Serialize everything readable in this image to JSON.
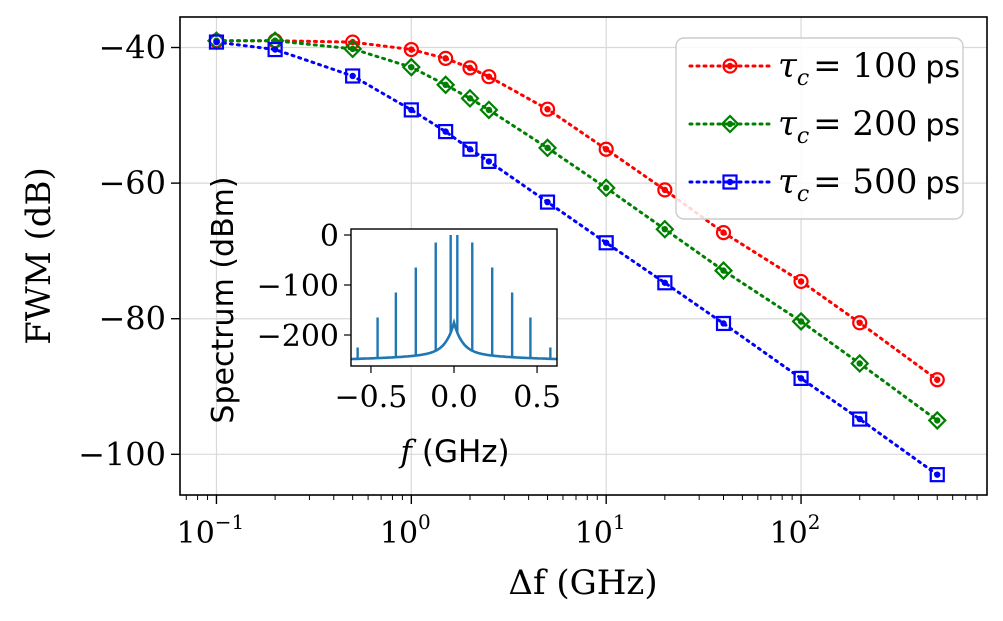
{
  "chart_data": [
    {
      "type": "line",
      "xscale": "log",
      "xlabel": "Δf (GHz)",
      "ylabel": "FWM (dB)",
      "xlim": [
        0.065,
        900
      ],
      "ylim": [
        -106,
        -35.5
      ],
      "xticks": [
        {
          "value": 0.1,
          "base": "10",
          "exp": "−1"
        },
        {
          "value": 1,
          "base": "10",
          "exp": "0"
        },
        {
          "value": 10,
          "base": "10",
          "exp": "1"
        },
        {
          "value": 100,
          "base": "10",
          "exp": "2"
        }
      ],
      "yticks": [
        {
          "value": -40,
          "label": "−40"
        },
        {
          "value": -60,
          "label": "−60"
        },
        {
          "value": -80,
          "label": "−80"
        },
        {
          "value": -100,
          "label": "−100"
        }
      ],
      "grid": true,
      "legend_position": "top-right",
      "x": [
        0.1,
        0.2,
        0.5,
        1,
        1.5,
        2,
        2.5,
        5,
        10,
        20,
        40,
        100,
        200,
        500
      ],
      "series": [
        {
          "name": "τ_c = 100 ps",
          "legend_math": "τ",
          "legend_sub": "c",
          "legend_eq": "= 100",
          "legend_unit": "ps",
          "color": "#ff0000",
          "marker": "circle",
          "values": [
            -39,
            -39,
            -39.2,
            -40.3,
            -41.6,
            -43,
            -44.3,
            -49.1,
            -55,
            -61,
            -67.3,
            -74.5,
            -80.6,
            -89
          ]
        },
        {
          "name": "τ_c = 200 ps",
          "legend_math": "τ",
          "legend_sub": "c",
          "legend_eq": "= 200",
          "legend_unit": "ps",
          "color": "#008000",
          "marker": "diamond",
          "values": [
            -39,
            -39,
            -40.2,
            -42.9,
            -45.5,
            -47.5,
            -49.2,
            -54.8,
            -60.7,
            -66.8,
            -72.9,
            -80.4,
            -86.6,
            -95
          ]
        },
        {
          "name": "τ_c = 500 ps",
          "legend_math": "τ",
          "legend_sub": "c",
          "legend_eq": "= 500",
          "legend_unit": "ps",
          "color": "#0000ff",
          "marker": "square",
          "values": [
            -39.2,
            -40.3,
            -44.2,
            -49.2,
            -52.4,
            -55,
            -56.8,
            -62.8,
            -68.8,
            -74.7,
            -80.7,
            -88.8,
            -94.8,
            -103
          ]
        }
      ]
    },
    {
      "type": "line",
      "inset": true,
      "xlabel_math": "f",
      "xlabel_unit": "(GHz)",
      "ylabel": "Spectrum (dBm)",
      "xlim": [
        -0.62,
        0.62
      ],
      "ylim": [
        -262,
        12
      ],
      "xticks": [
        {
          "value": -0.5,
          "label": "−0.5"
        },
        {
          "value": 0.0,
          "label": "0.0"
        },
        {
          "value": 0.5,
          "label": "0.5"
        }
      ],
      "yticks": [
        {
          "value": 0,
          "label": "0"
        },
        {
          "value": -100,
          "label": "−100"
        },
        {
          "value": -200,
          "label": "−200"
        }
      ],
      "color": "#1f77b4",
      "peaks": {
        "frequencies": [
          -0.58,
          -0.46,
          -0.35,
          -0.23,
          -0.11,
          -0.02,
          0.02,
          0.11,
          0.23,
          0.35,
          0.46,
          0.58
        ],
        "values": [
          -225,
          -165,
          -115,
          -65,
          -15,
          0,
          0,
          -15,
          -65,
          -115,
          -165,
          -225
        ]
      },
      "floor": {
        "edge": -248,
        "center": -190
      }
    }
  ]
}
